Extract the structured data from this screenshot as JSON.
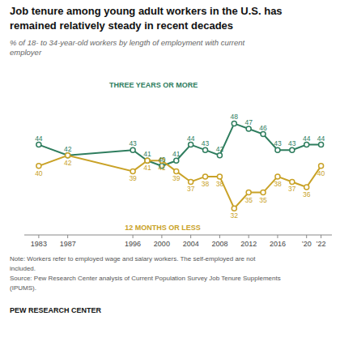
{
  "chart_data": {
    "type": "line",
    "title": [
      "Job tenure among young adult workers in the U.S. has",
      "remained relatively steady in recent decades"
    ],
    "subtitle": "% of 18- to 34-year-old workers by length of employment with current\nemployer",
    "notes": [
      "Note: Workers refer to employed wage and salary workers. The self-employed are not",
      "included.",
      "Source: Pew Research Center analysis of Current Population Survey Job Tenure Supplements",
      "(IPUMS)."
    ],
    "source": "PEW RESEARCH CENTER",
    "x": [
      1983,
      1987,
      1996,
      1998,
      2000,
      2002,
      2004,
      2006,
      2008,
      2010,
      2012,
      2014,
      2016,
      2018,
      2020,
      2022
    ],
    "series": [
      {
        "name": "THREE YEARS OR MORE",
        "color": "#2e7d5e",
        "marker": "circle",
        "values": [
          44,
          42,
          43,
          41,
          40,
          41,
          44,
          43,
          42,
          48,
          47,
          46,
          43,
          43,
          44,
          44
        ]
      },
      {
        "name": "12 MONTHS OR LESS",
        "color": "#c9a227",
        "marker": "circle",
        "values": [
          40,
          42,
          39,
          41,
          41,
          39,
          37,
          38,
          38,
          32,
          35,
          35,
          38,
          37,
          36,
          40
        ]
      }
    ],
    "xlim": [
      1981,
      2023.5
    ],
    "ylim": [
      27,
      56
    ],
    "xticks": [
      1983,
      1987,
      1996,
      2000,
      2004,
      2008,
      2012,
      2016,
      {
        "value": 2020,
        "label": "’20"
      },
      {
        "value": 2022,
        "label": "’22"
      }
    ],
    "tick_labels": "x",
    "data_labels": true,
    "grid": false
  }
}
